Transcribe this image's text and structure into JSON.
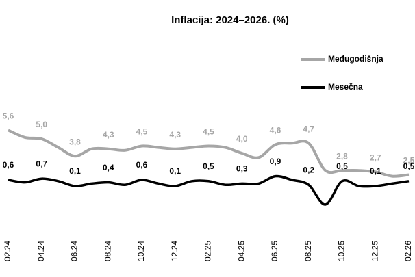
{
  "chart_data": {
    "type": "line",
    "title": "Inflacija: 2024–2026. (%)",
    "categories": [
      "02.24",
      null,
      "04.24",
      null,
      "06.24",
      null,
      "08.24",
      null,
      "10.24",
      null,
      "12.24",
      null,
      "02.25",
      null,
      "04.25",
      null,
      "06.25",
      null,
      "08.25",
      null,
      "10.25",
      null,
      "12.25",
      null,
      "02.26"
    ],
    "ylim": [
      -3,
      12
    ],
    "y2lim": [
      -5.4,
      12.1
    ],
    "legend": "top-right",
    "series": [
      {
        "name": "Međugodišnja",
        "color": "#a6a6a6",
        "values": [
          5.6,
          5.1,
          5.0,
          4.4,
          3.8,
          4.3,
          4.3,
          4.2,
          4.5,
          4.4,
          4.3,
          4.4,
          4.5,
          4.4,
          4.0,
          3.7,
          4.6,
          4.7,
          4.7,
          2.8,
          2.8,
          2.8,
          2.7,
          2.4,
          2.5
        ],
        "value_labels": [
          "5,6",
          null,
          "5,0",
          null,
          "3,8",
          null,
          "4,3",
          null,
          "4,5",
          null,
          "4,3",
          null,
          "4,5",
          null,
          "4,0",
          null,
          "4,6",
          null,
          "4,7",
          null,
          "2,8",
          null,
          "2,7",
          null,
          "2,5"
        ]
      },
      {
        "name": "Mesečna",
        "color": "#000000",
        "axis": "y2",
        "values": [
          0.6,
          0.4,
          0.7,
          0.5,
          0.1,
          0.3,
          0.4,
          0.2,
          0.6,
          0.3,
          0.1,
          0.5,
          0.5,
          0.2,
          0.3,
          0.3,
          0.9,
          0.6,
          0.2,
          -1.4,
          0.5,
          0.1,
          0.1,
          0.3,
          0.5
        ],
        "value_labels": [
          "0,6",
          null,
          "0,7",
          null,
          "0,1",
          null,
          "0,4",
          null,
          "0,6",
          null,
          "0,1",
          null,
          "0,5",
          null,
          "0,3",
          null,
          "0,9",
          null,
          "0,2",
          null,
          "0,5",
          null,
          "0,1",
          null,
          "0,5"
        ]
      }
    ]
  }
}
